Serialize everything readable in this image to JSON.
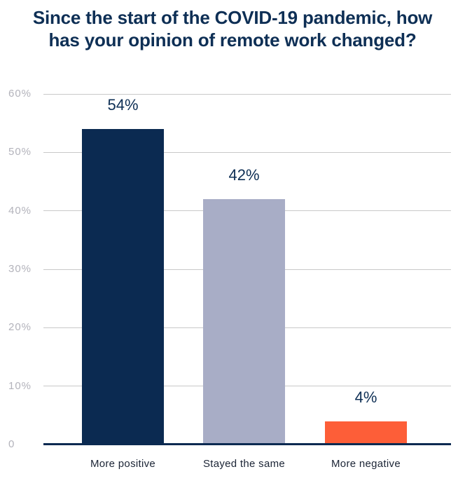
{
  "chart_data": {
    "type": "bar",
    "title": "Since the start of the COVID-19 pandemic, how has your opinion of remote work changed?",
    "title_lines": [
      "Since the start of the COVID-19 pandemic, how",
      "has your opinion of remote work changed?"
    ],
    "categories": [
      "More positive",
      "Stayed the same",
      "More negative"
    ],
    "values": [
      54,
      42,
      4
    ],
    "value_labels": [
      "54%",
      "42%",
      "4%"
    ],
    "bar_colors": [
      "#0b2a51",
      "#a8adc6",
      "#fd5e38"
    ],
    "xlabel": "",
    "ylabel": "",
    "ylim": [
      0,
      60
    ],
    "ytick_step": 10,
    "ytick_labels": [
      "0",
      "10%",
      "20%",
      "30%",
      "40%",
      "50%",
      "60%"
    ],
    "grid": true,
    "legend": "none"
  },
  "colors": {
    "background": "#ffffff",
    "title": "#0e2f55",
    "value_label": "#0e2f55",
    "axis_line": "#0b2a51",
    "gridline": "#c9c9c9",
    "ytick_label": "#b3b3bb",
    "category_label": "#1b2435"
  }
}
